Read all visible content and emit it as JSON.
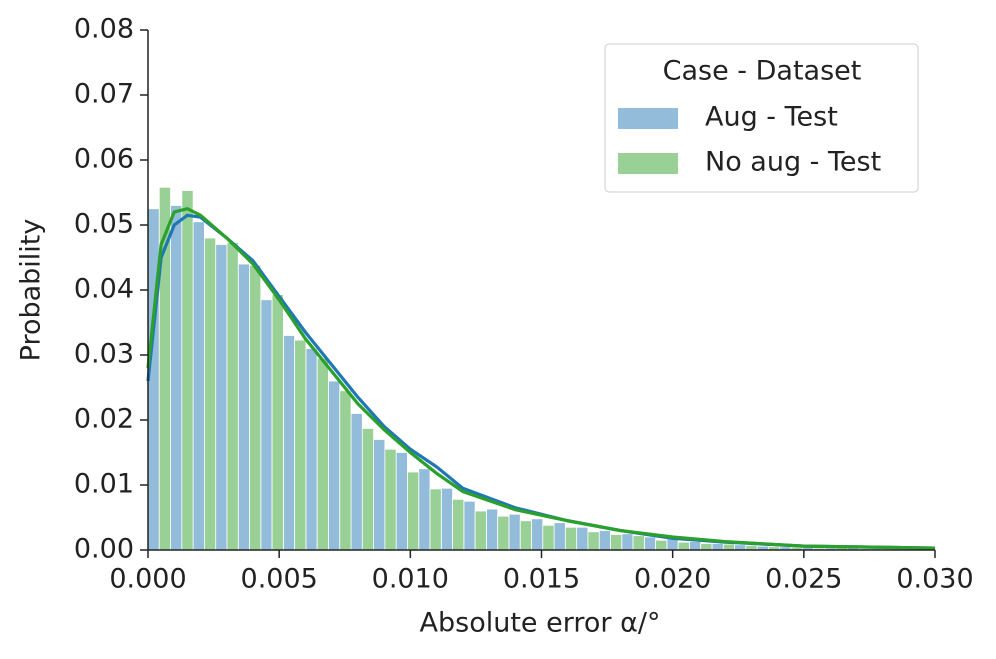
{
  "chart_data": {
    "type": "histogram",
    "xlabel": "Absolute error α/°",
    "ylabel": "Probability",
    "legend_title": "Case - Dataset",
    "legend": "upper right",
    "xlim": [
      0,
      0.03
    ],
    "ylim": [
      0,
      0.08
    ],
    "xticks": [
      {
        "value": 0,
        "label": "0.000"
      },
      {
        "value": 0.005,
        "label": "0.005"
      },
      {
        "value": 0.01,
        "label": "0.010"
      },
      {
        "value": 0.015,
        "label": "0.015"
      },
      {
        "value": 0.02,
        "label": "0.020"
      },
      {
        "value": 0.025,
        "label": "0.025"
      },
      {
        "value": 0.03,
        "label": "0.030"
      }
    ],
    "yticks": [
      {
        "value": 0,
        "label": "0.00"
      },
      {
        "value": 0.01,
        "label": "0.01"
      },
      {
        "value": 0.02,
        "label": "0.02"
      },
      {
        "value": 0.03,
        "label": "0.03"
      },
      {
        "value": 0.04,
        "label": "0.04"
      },
      {
        "value": 0.05,
        "label": "0.05"
      },
      {
        "value": 0.06,
        "label": "0.06"
      },
      {
        "value": 0.07,
        "label": "0.07"
      },
      {
        "value": 0.08,
        "label": "0.08"
      }
    ],
    "bins": [
      0,
      0.00086,
      0.00172,
      0.00258,
      0.00344,
      0.0043,
      0.00516,
      0.00602,
      0.00688,
      0.00774,
      0.0086,
      0.00946,
      0.01032,
      0.01118,
      0.01204,
      0.0129,
      0.01376,
      0.01462,
      0.01548,
      0.01634,
      0.0172,
      0.01806,
      0.01892,
      0.01978,
      0.02064,
      0.0215,
      0.02236,
      0.02322,
      0.02408,
      0.02494,
      0.0258,
      0.02666,
      0.02752,
      0.02838,
      0.02924,
      0.0301
    ],
    "series": [
      {
        "name": "Aug - Test",
        "color": "#92bcd9",
        "line_color": "#1f77b4",
        "values": [
          0.0525,
          0.053,
          0.0505,
          0.047,
          0.044,
          0.0385,
          0.033,
          0.031,
          0.026,
          0.021,
          0.017,
          0.015,
          0.0125,
          0.0095,
          0.0075,
          0.0063,
          0.0055,
          0.0048,
          0.0042,
          0.0035,
          0.003,
          0.0025,
          0.002,
          0.0017,
          0.0013,
          0.001,
          0.0008,
          0.0006,
          0.0005,
          0.0004,
          0.0003,
          0.0003,
          0.0002,
          0.0002,
          0.0001
        ],
        "kde": {
          "x": [
            0,
            0.0005,
            0.001,
            0.0015,
            0.002,
            0.003,
            0.004,
            0.005,
            0.006,
            0.007,
            0.008,
            0.009,
            0.01,
            0.011,
            0.012,
            0.014,
            0.016,
            0.018,
            0.02,
            0.022,
            0.025,
            0.03
          ],
          "values": [
            0.026,
            0.045,
            0.05,
            0.0515,
            0.0512,
            0.048,
            0.0445,
            0.039,
            0.0335,
            0.0285,
            0.0235,
            0.019,
            0.0155,
            0.0128,
            0.0095,
            0.0065,
            0.0045,
            0.003,
            0.0018,
            0.0012,
            0.0006,
            0.0003
          ]
        }
      },
      {
        "name": "No aug - Test",
        "color": "#98d095",
        "line_color": "#2ca02c",
        "values": [
          0.0558,
          0.0553,
          0.048,
          0.0473,
          0.0438,
          0.0393,
          0.0323,
          0.0295,
          0.0245,
          0.0187,
          0.0155,
          0.012,
          0.0094,
          0.0078,
          0.006,
          0.0052,
          0.0045,
          0.0038,
          0.0035,
          0.0028,
          0.0024,
          0.0022,
          0.0015,
          0.0012,
          0.001,
          0.0009,
          0.0007,
          0.0005,
          0.0004,
          0.0003,
          0.0003,
          0.0002,
          0.0002,
          0.0001,
          0.0001
        ],
        "kde": {
          "x": [
            0,
            0.0005,
            0.001,
            0.0015,
            0.002,
            0.003,
            0.004,
            0.005,
            0.006,
            0.007,
            0.008,
            0.009,
            0.01,
            0.011,
            0.012,
            0.014,
            0.016,
            0.018,
            0.02,
            0.022,
            0.025,
            0.03
          ],
          "values": [
            0.028,
            0.047,
            0.052,
            0.0525,
            0.0515,
            0.048,
            0.044,
            0.0385,
            0.0325,
            0.0275,
            0.0225,
            0.0185,
            0.015,
            0.0118,
            0.009,
            0.0062,
            0.0045,
            0.003,
            0.002,
            0.0013,
            0.0006,
            0.0003
          ]
        }
      }
    ]
  }
}
